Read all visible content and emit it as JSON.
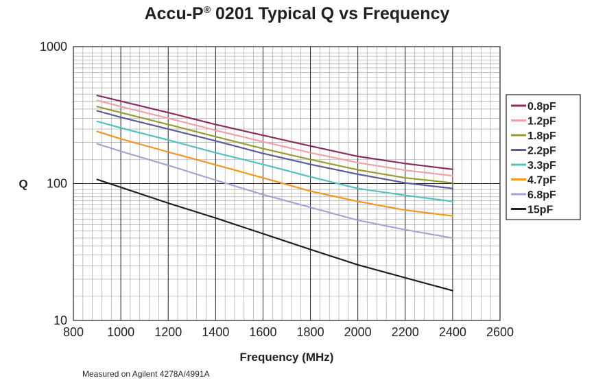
{
  "title_main": "Accu-P",
  "title_sup": "®",
  "title_rest": " 0201 Typical Q vs Frequency",
  "footnote": "Measured on Agilent 4278A/4991A",
  "chart_data": {
    "type": "line",
    "title": "Accu-P® 0201 Typical Q vs Frequency",
    "xlabel": "Frequency (MHz)",
    "ylabel": "Q",
    "xlim": [
      800,
      2600
    ],
    "ylim": [
      10,
      1000
    ],
    "yscale": "log",
    "grid": true,
    "legend_position": "right",
    "x_ticks": [
      800,
      1000,
      1200,
      1400,
      1600,
      1800,
      2000,
      2200,
      2400,
      2600
    ],
    "y_ticks": [
      10,
      100,
      1000
    ],
    "x": [
      900,
      1000,
      1200,
      1400,
      1600,
      1800,
      2000,
      2200,
      2400
    ],
    "series": [
      {
        "name": "0.8pF",
        "color": "#8a2b5c",
        "values": [
          440,
          400,
          330,
          270,
          225,
          188,
          158,
          140,
          127
        ]
      },
      {
        "name": "1.2pF",
        "color": "#f2a0a4",
        "values": [
          405,
          365,
          300,
          245,
          202,
          168,
          142,
          125,
          114
        ]
      },
      {
        "name": "1.8pF",
        "color": "#9a9a2e",
        "values": [
          365,
          330,
          270,
          220,
          180,
          150,
          126,
          110,
          101
        ]
      },
      {
        "name": "2.2pF",
        "color": "#5b5b96",
        "values": [
          340,
          305,
          250,
          205,
          166,
          138,
          117,
          101,
          92
        ]
      },
      {
        "name": "3.3pF",
        "color": "#4fc2c0",
        "values": [
          285,
          255,
          208,
          168,
          138,
          112,
          92,
          82,
          74
        ]
      },
      {
        "name": "4.7pF",
        "color": "#f7941d",
        "values": [
          240,
          212,
          170,
          137,
          110,
          88,
          74,
          64,
          58
        ]
      },
      {
        "name": "6.8pF",
        "color": "#a3a3d6",
        "values": [
          195,
          172,
          136,
          106,
          83,
          67,
          54,
          46,
          40
        ]
      },
      {
        "name": "15pF",
        "color": "#231f20",
        "values": [
          107,
          94,
          72,
          56,
          43,
          33,
          25.5,
          20.5,
          16.5
        ]
      }
    ]
  }
}
